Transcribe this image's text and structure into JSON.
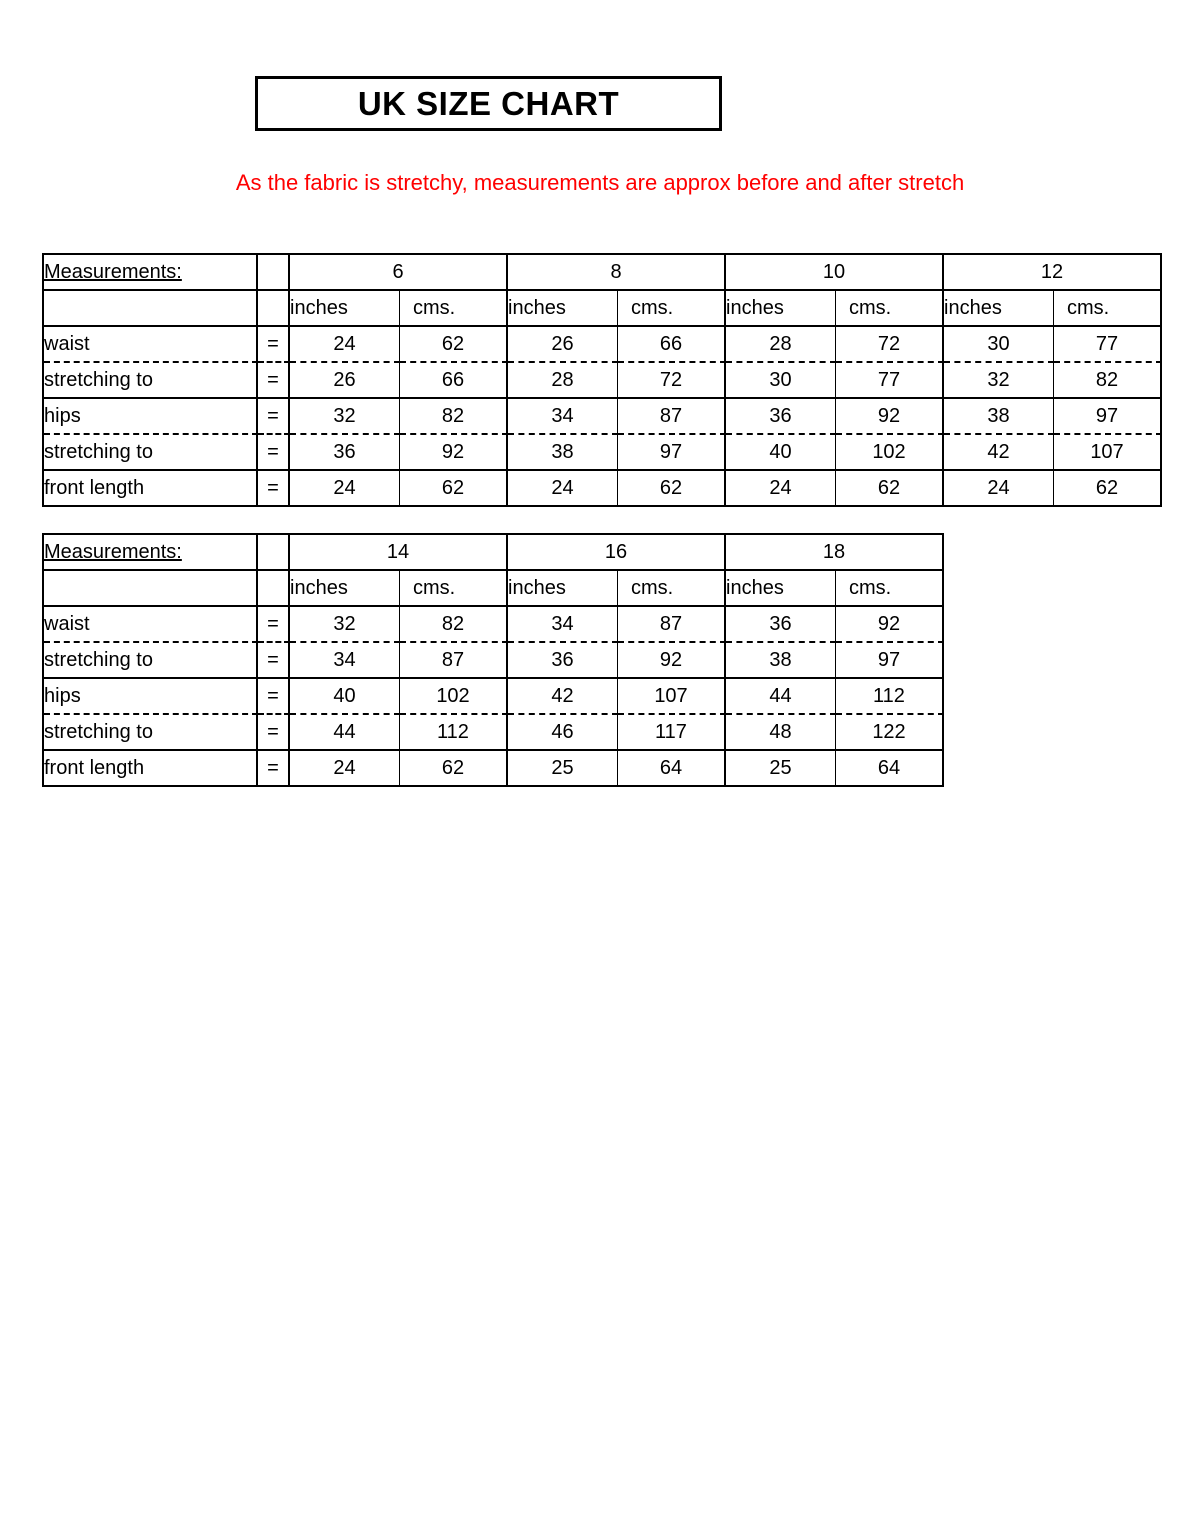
{
  "page": {
    "title": "UK SIZE CHART",
    "notice": "As the fabric is stretchy, measurements are approx before and after stretch"
  },
  "colors": {
    "notice_red": "#FF0000",
    "line_black": "#000000",
    "background": "#FFFFFF"
  },
  "tables": [
    {
      "corner_label": "Measurements:",
      "equals_symbol": "=",
      "sizes": [
        "6",
        "8",
        "10",
        "12"
      ],
      "unit_labels": [
        "inches",
        "cms."
      ],
      "rows": [
        {
          "label": "waist",
          "separator_below": "dashed",
          "values": [
            [
              "24",
              "62"
            ],
            [
              "26",
              "66"
            ],
            [
              "28",
              "72"
            ],
            [
              "30",
              "77"
            ]
          ]
        },
        {
          "label": "stretching to",
          "separator_below": "solid",
          "values": [
            [
              "26",
              "66"
            ],
            [
              "28",
              "72"
            ],
            [
              "30",
              "77"
            ],
            [
              "32",
              "82"
            ]
          ]
        },
        {
          "label": "hips",
          "separator_below": "dashed",
          "values": [
            [
              "32",
              "82"
            ],
            [
              "34",
              "87"
            ],
            [
              "36",
              "92"
            ],
            [
              "38",
              "97"
            ]
          ]
        },
        {
          "label": "stretching to",
          "separator_below": "solid",
          "values": [
            [
              "36",
              "92"
            ],
            [
              "38",
              "97"
            ],
            [
              "40",
              "102"
            ],
            [
              "42",
              "107"
            ]
          ]
        },
        {
          "label": "front length",
          "separator_below": "solid",
          "values": [
            [
              "24",
              "62"
            ],
            [
              "24",
              "62"
            ],
            [
              "24",
              "62"
            ],
            [
              "24",
              "62"
            ]
          ]
        }
      ]
    },
    {
      "corner_label": "Measurements:",
      "equals_symbol": "=",
      "sizes": [
        "14",
        "16",
        "18"
      ],
      "unit_labels": [
        "inches",
        "cms."
      ],
      "rows": [
        {
          "label": "waist",
          "separator_below": "dashed",
          "values": [
            [
              "32",
              "82"
            ],
            [
              "34",
              "87"
            ],
            [
              "36",
              "92"
            ]
          ]
        },
        {
          "label": "stretching to",
          "separator_below": "solid",
          "values": [
            [
              "34",
              "87"
            ],
            [
              "36",
              "92"
            ],
            [
              "38",
              "97"
            ]
          ]
        },
        {
          "label": "hips",
          "separator_below": "dashed",
          "values": [
            [
              "40",
              "102"
            ],
            [
              "42",
              "107"
            ],
            [
              "44",
              "112"
            ]
          ]
        },
        {
          "label": "stretching to",
          "separator_below": "solid",
          "values": [
            [
              "44",
              "112"
            ],
            [
              "46",
              "117"
            ],
            [
              "48",
              "122"
            ]
          ]
        },
        {
          "label": "front length",
          "separator_below": "solid",
          "values": [
            [
              "24",
              "62"
            ],
            [
              "25",
              "64"
            ],
            [
              "25",
              "64"
            ]
          ]
        }
      ]
    }
  ]
}
